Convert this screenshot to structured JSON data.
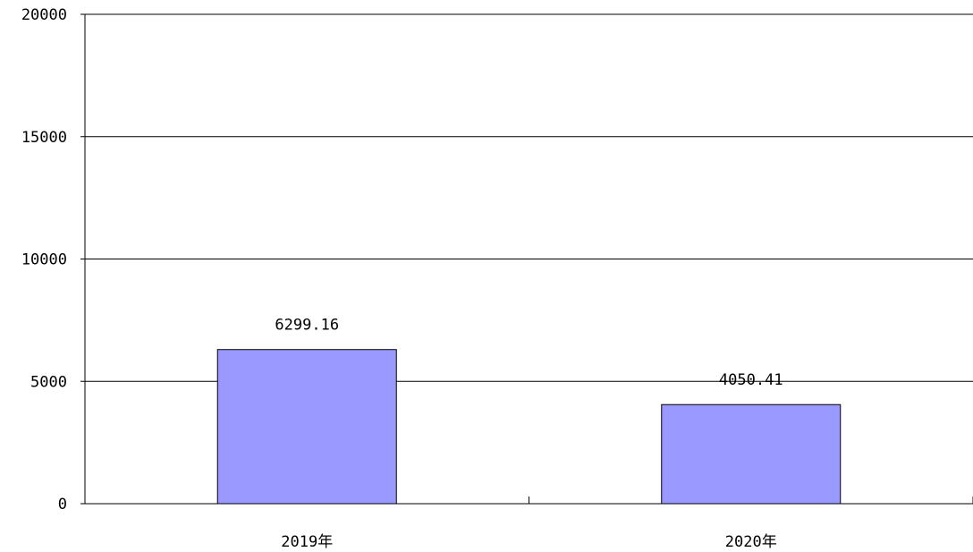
{
  "chart_data": {
    "type": "bar",
    "categories": [
      "2019年",
      "2020年"
    ],
    "values": [
      6299.16,
      4050.41
    ],
    "value_labels": [
      "6299.16",
      "4050.41"
    ],
    "title": "",
    "xlabel": "",
    "ylabel": "",
    "ylim": [
      0,
      20000
    ],
    "yticks": [
      0,
      5000,
      10000,
      15000,
      20000
    ],
    "ytick_labels": [
      "0",
      "5000",
      "10000",
      "15000",
      "20000"
    ],
    "grid": true,
    "legend": "none",
    "colors": {
      "bar_fill": "#9999ff",
      "bar_stroke": "#000000",
      "grid": "#000000",
      "background": "#ffffff"
    }
  }
}
